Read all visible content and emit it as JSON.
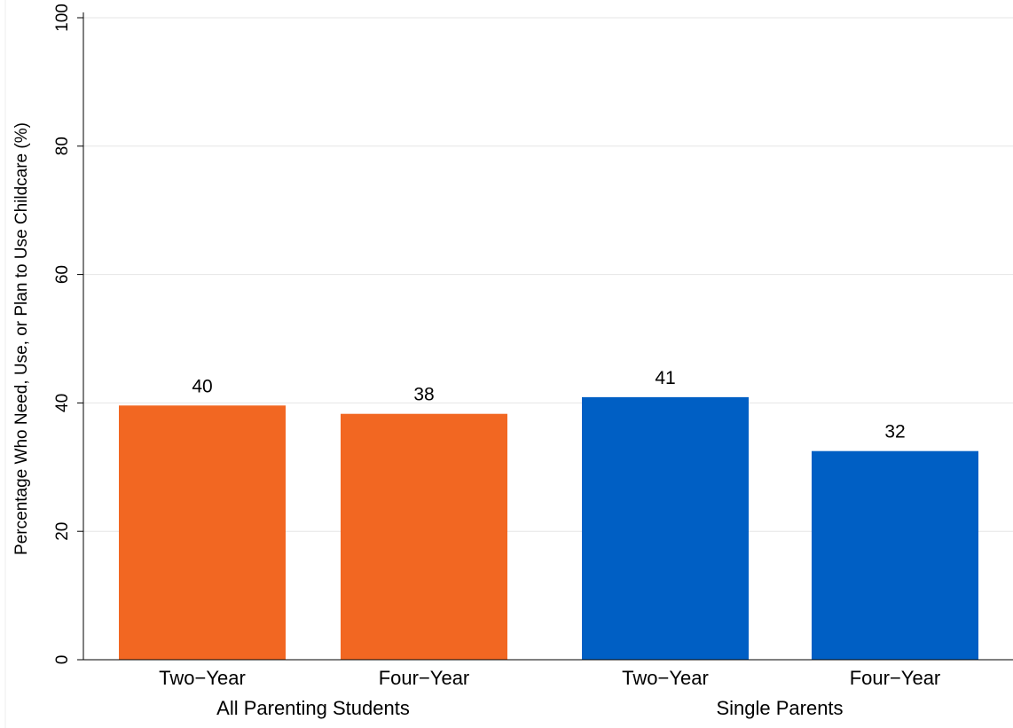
{
  "chart_data": {
    "type": "bar",
    "title": "",
    "xlabel": "",
    "ylabel": "Percentage Who Need, Use, or Plan to Use Childcare (%)",
    "ylim": [
      0,
      100
    ],
    "yticks": [
      0,
      20,
      40,
      60,
      80,
      100
    ],
    "grid": true,
    "legend": "none",
    "groups": [
      "All Parenting Students",
      "Single Parents"
    ],
    "categories": [
      "Two−Year",
      "Four−Year",
      "Two−Year",
      "Four−Year"
    ],
    "bars": [
      {
        "group": "All Parenting Students",
        "category": "Two−Year",
        "value": 39.6,
        "label": "40",
        "color": "#f26722"
      },
      {
        "group": "All Parenting Students",
        "category": "Four−Year",
        "value": 38.3,
        "label": "38",
        "color": "#f26722"
      },
      {
        "group": "Single Parents",
        "category": "Two−Year",
        "value": 40.9,
        "label": "41",
        "color": "#005fc4"
      },
      {
        "group": "Single Parents",
        "category": "Four−Year",
        "value": 32.5,
        "label": "32",
        "color": "#005fc4"
      }
    ],
    "colors": {
      "all_parenting_students": "#f26722",
      "single_parents": "#005fc4",
      "grid": "#e6e6e6",
      "axis": "#000000"
    }
  }
}
